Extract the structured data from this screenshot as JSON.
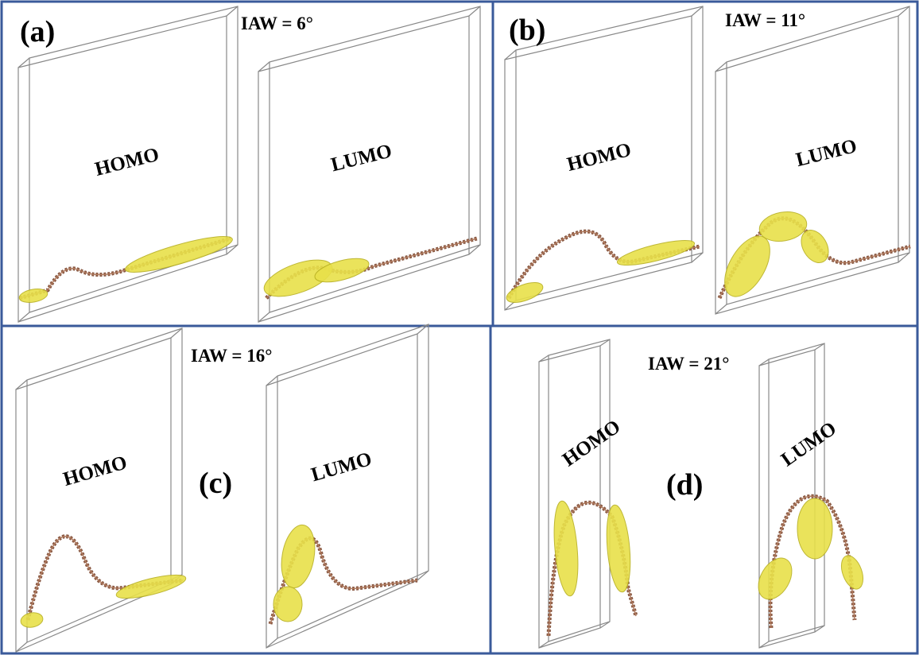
{
  "panels": [
    {
      "label": "(a)",
      "iaw": "IAW = 6°",
      "homo": "HOMO",
      "lumo": "LUMO"
    },
    {
      "label": "(b)",
      "iaw": "IAW = 11°",
      "homo": "HOMO",
      "lumo": "LUMO"
    },
    {
      "label": "(c)",
      "iaw": "IAW = 16°",
      "homo": "HOMO",
      "lumo": "LUMO"
    },
    {
      "label": "(d)",
      "iaw": "IAW = 21°",
      "homo": "HOMO",
      "lumo": "LUMO"
    }
  ]
}
